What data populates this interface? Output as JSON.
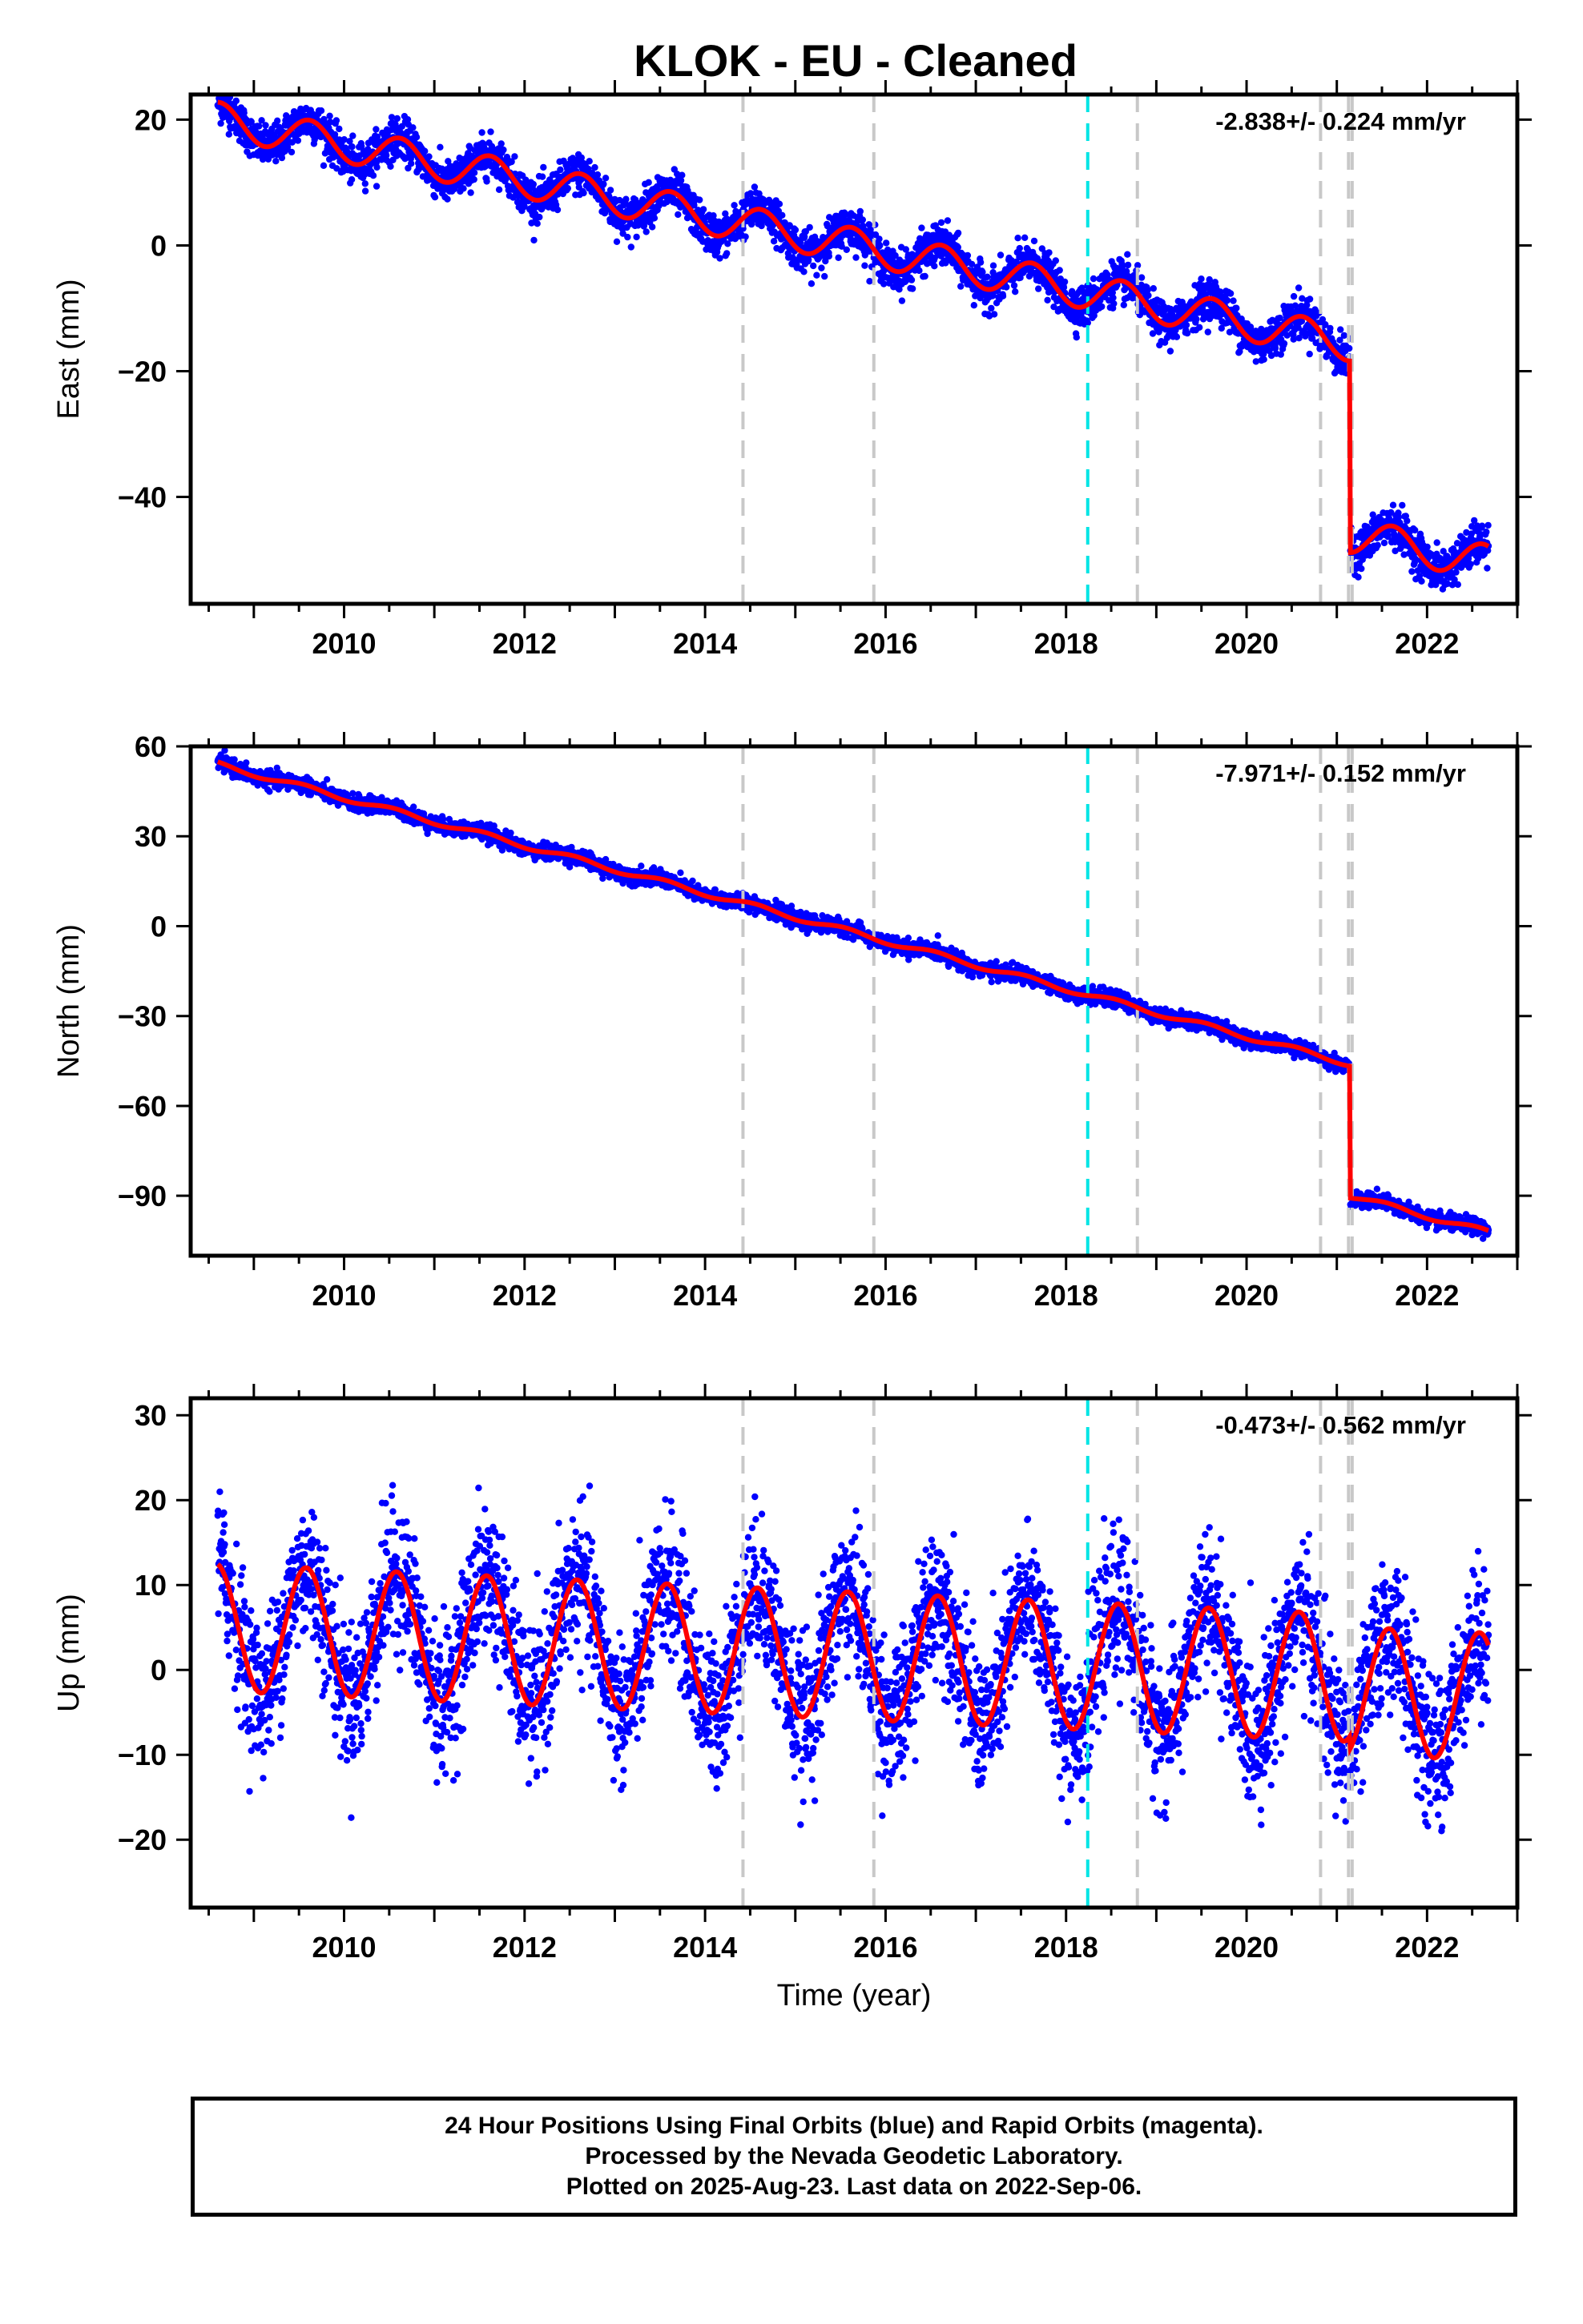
{
  "title": "KLOK  - EU - Cleaned",
  "footer": {
    "line1": "24 Hour Positions Using Final Orbits (blue) and Rapid Orbits (magenta).",
    "line2": "Processed by the Nevada Geodetic Laboratory.",
    "line3": "Plotted on 2025-Aug-23. Last data on 2022-Sep-06."
  },
  "colors": {
    "data_points": "#0000ff",
    "model_fit": "#ff0000",
    "equipment_change_line": "#c8c8c8",
    "earthquake_line": "#00e5e5"
  },
  "chart_data": [
    {
      "type": "scatter",
      "panel": "east",
      "xlabel": "",
      "ylabel": "East (mm)",
      "xlim": [
        2008.3,
        2023.0
      ],
      "ylim": [
        -57,
        24
      ],
      "x_ticks": [
        2010,
        2012,
        2014,
        2016,
        2018,
        2020,
        2022
      ],
      "y_ticks": [
        20,
        0,
        -20,
        -40
      ],
      "y_tick_labels": [
        "20",
        "0",
        "−20",
        "−40"
      ],
      "rate_label": "-2.838+/- 0.224 mm/yr",
      "model": {
        "offset": 20.0,
        "rate": -2.838,
        "amplitude": 2.8,
        "phase_year": 0.62,
        "step_epoch": 2021.15,
        "step": -30.5,
        "noise": 1.6,
        "start": 2008.6,
        "end": 2022.68
      },
      "markers": {
        "gray": [
          2014.42,
          2015.87,
          2018.79,
          2020.82,
          2021.13,
          2021.17
        ],
        "cyan": [
          2018.24
        ]
      }
    },
    {
      "type": "scatter",
      "panel": "north",
      "xlabel": "",
      "ylabel": "North (mm)",
      "xlim": [
        2008.3,
        2023.0
      ],
      "ylim": [
        -110,
        60
      ],
      "x_ticks": [
        2010,
        2012,
        2014,
        2016,
        2018,
        2020,
        2022
      ],
      "y_ticks": [
        60,
        30,
        0,
        -30,
        -60,
        -90
      ],
      "y_tick_labels": [
        "60",
        "30",
        "0",
        "−30",
        "−60",
        "−90"
      ],
      "rate_label": "-7.971+/- 0.152 mm/yr",
      "model": {
        "offset": 54.0,
        "rate": -7.971,
        "amplitude": 0.9,
        "phase_year": 0.55,
        "step_epoch": 2021.15,
        "step": -44.0,
        "noise": 1.3,
        "start": 2008.6,
        "end": 2022.68
      },
      "markers": {
        "gray": [
          2014.42,
          2015.87,
          2018.79,
          2020.82,
          2021.13,
          2021.17
        ],
        "cyan": [
          2018.24
        ]
      }
    },
    {
      "type": "scatter",
      "panel": "up",
      "xlabel": "Time (year)",
      "ylabel": "Up (mm)",
      "xlim": [
        2008.3,
        2023.0
      ],
      "ylim": [
        -28,
        32
      ],
      "x_ticks": [
        2010,
        2012,
        2014,
        2016,
        2018,
        2020,
        2022
      ],
      "y_ticks": [
        30,
        20,
        10,
        0,
        -10,
        -20
      ],
      "y_tick_labels": [
        "30",
        "20",
        "10",
        "0",
        "−10",
        "−20"
      ],
      "rate_label": "-0.473+/- 0.562 mm/yr",
      "model": {
        "offset": 5.0,
        "rate": -0.473,
        "amplitude": 7.5,
        "phase_year": 0.58,
        "step_epoch": 2021.15,
        "step": -1.5,
        "noise": 4.2,
        "start": 2008.6,
        "end": 2022.68
      },
      "markers": {
        "gray": [
          2014.42,
          2015.87,
          2018.79,
          2020.82,
          2021.13,
          2021.17
        ],
        "cyan": [
          2018.24
        ]
      }
    }
  ]
}
